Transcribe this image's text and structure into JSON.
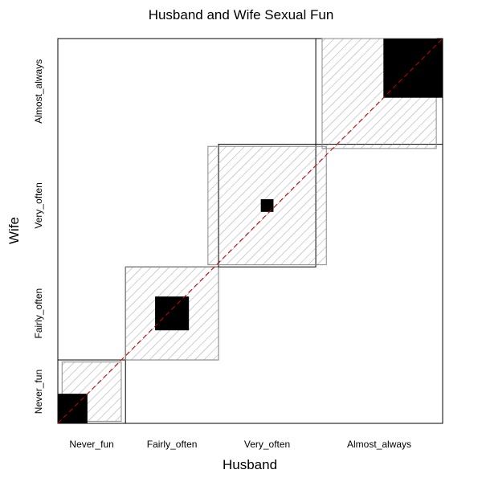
{
  "chart_data": {
    "type": "agreement-chart",
    "title": "Husband and Wife Sexual Fun",
    "xlabel": "Husband",
    "ylabel": "Wife",
    "categories": [
      "Never_fun",
      "Fairly_often",
      "Very_often",
      "Almost_always"
    ],
    "row_totals": [
      15,
      22,
      29,
      25
    ],
    "col_totals": [
      16,
      22,
      23,
      30
    ],
    "diagonal_exact": [
      7,
      8,
      3,
      14
    ],
    "diagonal_partial": [
      14,
      22,
      28,
      27
    ],
    "total": 91,
    "reference_line": true,
    "reference_line_color": "#cc0000",
    "colors": {
      "frame": "#000000",
      "exact_fill": "#000000",
      "partial_hatch": "#888888",
      "background": "#ffffff"
    }
  }
}
